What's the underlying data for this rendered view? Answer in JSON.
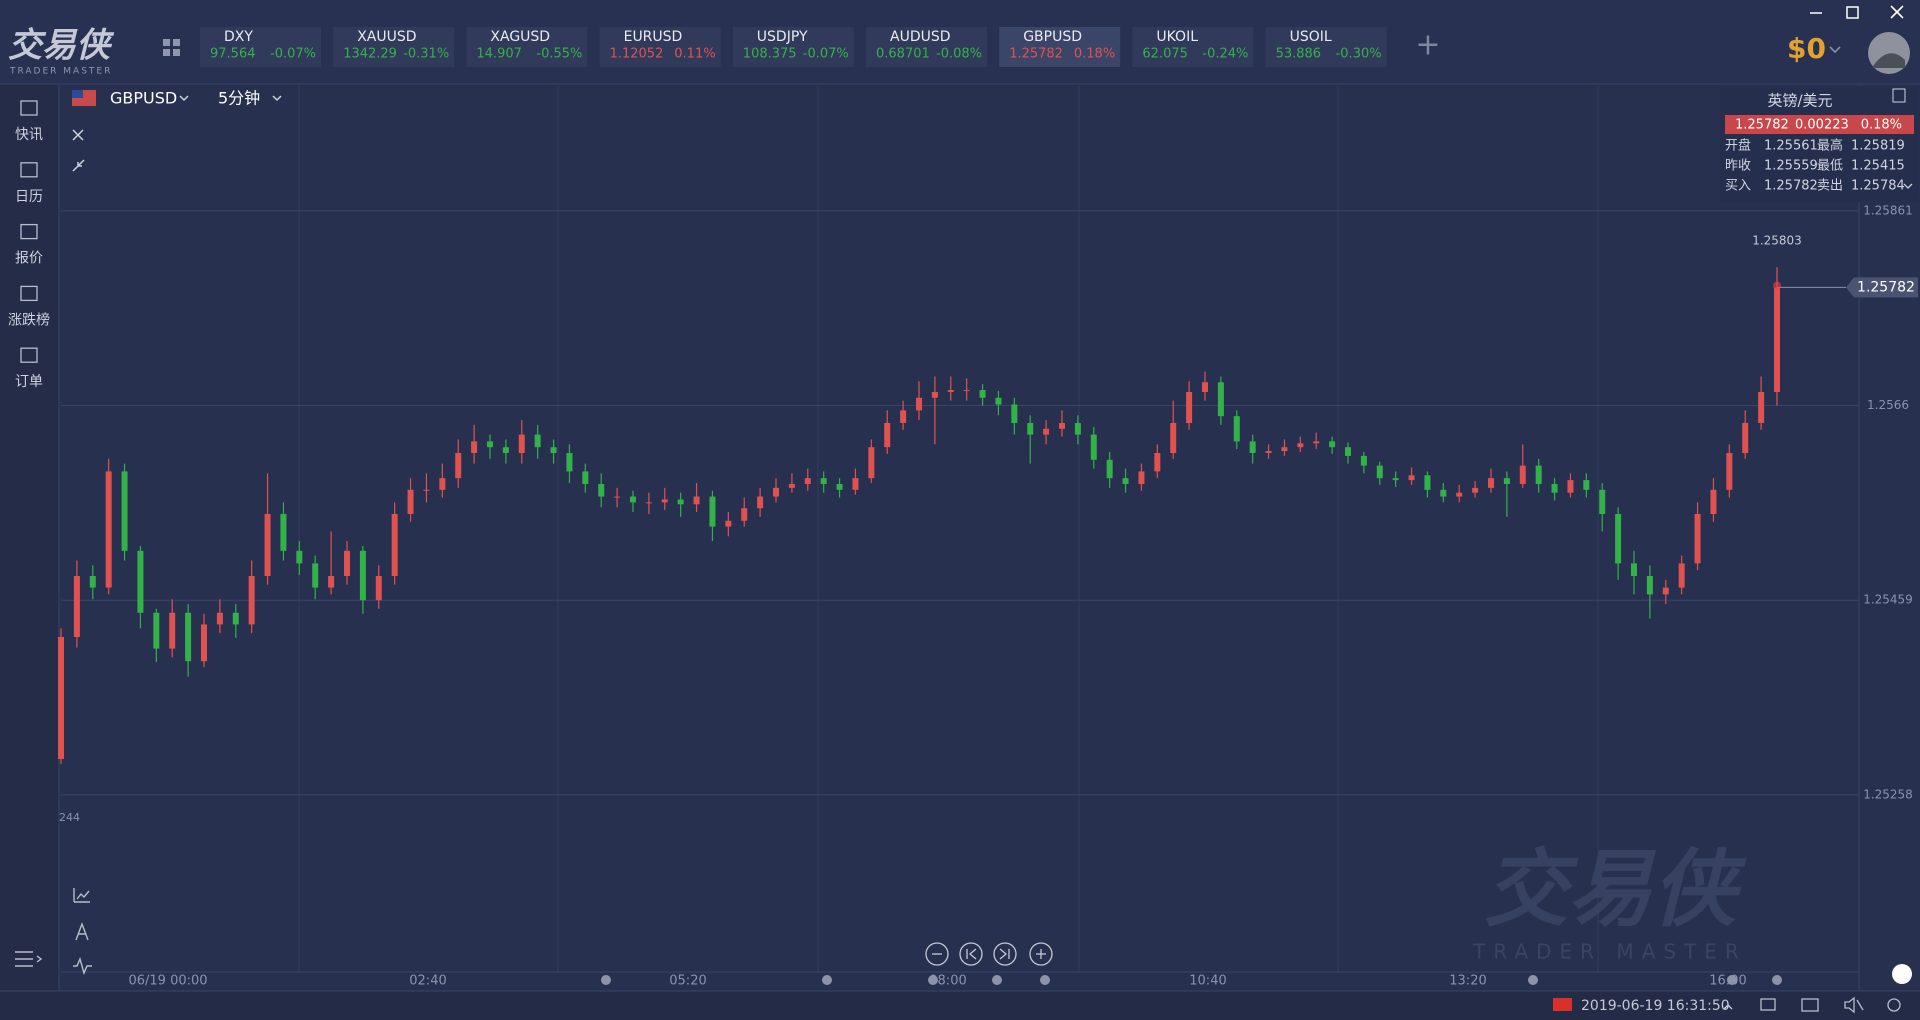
{
  "app": {
    "logo": "交易侠",
    "logo_sub": "TRADER MASTER",
    "balance": "$0"
  },
  "tickers": [
    {
      "name": "DXY",
      "price": "97.564",
      "change": "-0.07%"
    },
    {
      "name": "XAUUSD",
      "price": "1342.29",
      "change": "-0.31%"
    },
    {
      "name": "XAGUSD",
      "price": "14.907",
      "change": "-0.55%"
    },
    {
      "name": "EURUSD",
      "price": "1.12052",
      "change": "0.11%"
    },
    {
      "name": "USDJPY",
      "price": "108.375",
      "change": "-0.07%"
    },
    {
      "name": "AUDUSD",
      "price": "0.68701",
      "change": "-0.08%"
    },
    {
      "name": "GBPUSD",
      "price": "1.25782",
      "change": "0.18%"
    },
    {
      "name": "UKOIL",
      "price": "62.075",
      "change": "-0.24%"
    },
    {
      "name": "USOIL",
      "price": "53.886",
      "change": "-0.30%"
    }
  ],
  "sidebar": [
    "快讯",
    "日历",
    "报价",
    "涨跌榜",
    "订单"
  ],
  "chart_header": {
    "symbol": "GBPUSD",
    "interval": "5分钟"
  },
  "quote_panel": {
    "title": "英镑/美元",
    "price": "1.25782",
    "change": "0.00223",
    "change_pct": "0.18%",
    "rows": [
      [
        "开盘",
        "1.25561",
        "最高",
        "1.25819"
      ],
      [
        "昨收",
        "1.25559",
        "最低",
        "1.25415"
      ],
      [
        "买入",
        "1.25782",
        "卖出",
        "1.25784"
      ]
    ]
  },
  "chart": {
    "type": "candlestick",
    "up_color": "#e0524f",
    "down_color": "#33b24a",
    "ylim": [
      1.25074,
      1.2599
    ],
    "yticks": [
      1.25861,
      1.2566,
      1.25459,
      1.25258
    ],
    "grid": true,
    "xtick_labels": [
      "06/19 00:00",
      "02:40",
      "05:20",
      "08:00",
      "10:40",
      "13:20",
      "16:00"
    ],
    "last_price": 1.25782,
    "high_label": 1.25803,
    "cut_label": "244",
    "candles": [
      [
        1.25295,
        1.2543,
        1.2529,
        1.25421
      ],
      [
        1.25421,
        1.255,
        1.2541,
        1.25484
      ],
      [
        1.25484,
        1.25495,
        1.2546,
        1.25472
      ],
      [
        1.25472,
        1.25605,
        1.25465,
        1.25592
      ],
      [
        1.25592,
        1.256,
        1.255,
        1.2551
      ],
      [
        1.2551,
        1.25515,
        1.2543,
        1.25446
      ],
      [
        1.25446,
        1.2545,
        1.25395,
        1.25409
      ],
      [
        1.25409,
        1.2546,
        1.254,
        1.25446
      ],
      [
        1.25446,
        1.25455,
        1.2538,
        1.25396
      ],
      [
        1.25396,
        1.25445,
        1.2539,
        1.25434
      ],
      [
        1.25434,
        1.2546,
        1.25425,
        1.25446
      ],
      [
        1.25446,
        1.25455,
        1.2542,
        1.25434
      ],
      [
        1.25434,
        1.255,
        1.25425,
        1.25484
      ],
      [
        1.25484,
        1.2559,
        1.25475,
        1.25548
      ],
      [
        1.25548,
        1.2556,
        1.255,
        1.2551
      ],
      [
        1.2551,
        1.2552,
        1.25485,
        1.25497
      ],
      [
        1.25497,
        1.25505,
        1.2546,
        1.25472
      ],
      [
        1.25472,
        1.2553,
        1.25465,
        1.25484
      ],
      [
        1.25484,
        1.2552,
        1.25475,
        1.2551
      ],
      [
        1.2551,
        1.25515,
        1.25445,
        1.25459
      ],
      [
        1.25459,
        1.25495,
        1.2545,
        1.25484
      ],
      [
        1.25484,
        1.2556,
        1.25475,
        1.25548
      ],
      [
        1.25548,
        1.25585,
        1.2554,
        1.25573
      ],
      [
        1.25573,
        1.2559,
        1.2556,
        1.25573
      ],
      [
        1.25573,
        1.256,
        1.25565,
        1.25585
      ],
      [
        1.25585,
        1.25625,
        1.25575,
        1.25611
      ],
      [
        1.25611,
        1.2564,
        1.256,
        1.25623
      ],
      [
        1.25623,
        1.2563,
        1.25605,
        1.25617
      ],
      [
        1.25617,
        1.25625,
        1.256,
        1.25611
      ],
      [
        1.25611,
        1.25645,
        1.256,
        1.2563
      ],
      [
        1.2563,
        1.2564,
        1.25605,
        1.25617
      ],
      [
        1.25617,
        1.25625,
        1.256,
        1.25611
      ],
      [
        1.25611,
        1.2562,
        1.2558,
        1.25592
      ],
      [
        1.25592,
        1.256,
        1.2557,
        1.25579
      ],
      [
        1.25579,
        1.2559,
        1.25555,
        1.25566
      ],
      [
        1.25566,
        1.25575,
        1.25555,
        1.25566
      ],
      [
        1.25566,
        1.25572,
        1.2555,
        1.2556
      ],
      [
        1.2556,
        1.2557,
        1.25548,
        1.2556
      ],
      [
        1.2556,
        1.25575,
        1.25552,
        1.25563
      ],
      [
        1.25563,
        1.2557,
        1.25545,
        1.25558
      ],
      [
        1.25558,
        1.2558,
        1.2555,
        1.25566
      ],
      [
        1.25566,
        1.25572,
        1.2552,
        1.25535
      ],
      [
        1.25535,
        1.2555,
        1.25525,
        1.25541
      ],
      [
        1.25541,
        1.25565,
        1.25535,
        1.25554
      ],
      [
        1.25554,
        1.25575,
        1.25545,
        1.25566
      ],
      [
        1.25566,
        1.25585,
        1.2556,
        1.25575
      ],
      [
        1.25575,
        1.2559,
        1.2557,
        1.25579
      ],
      [
        1.25579,
        1.25595,
        1.25572,
        1.25585
      ],
      [
        1.25585,
        1.25592,
        1.2557,
        1.25579
      ],
      [
        1.25579,
        1.25585,
        1.25565,
        1.25573
      ],
      [
        1.25573,
        1.25595,
        1.25568,
        1.25585
      ],
      [
        1.25585,
        1.25625,
        1.2558,
        1.25617
      ],
      [
        1.25617,
        1.25655,
        1.2561,
        1.25642
      ],
      [
        1.25642,
        1.25665,
        1.25635,
        1.25655
      ],
      [
        1.25655,
        1.25685,
        1.25645,
        1.25668
      ],
      [
        1.25668,
        1.2569,
        1.2562,
        1.25674
      ],
      [
        1.25674,
        1.2569,
        1.25665,
        1.25676
      ],
      [
        1.25676,
        1.25688,
        1.25665,
        1.25676
      ],
      [
        1.25676,
        1.25682,
        1.2566,
        1.25668
      ],
      [
        1.25668,
        1.25675,
        1.2565,
        1.25661
      ],
      [
        1.25661,
        1.25668,
        1.2563,
        1.25642
      ],
      [
        1.25642,
        1.2565,
        1.256,
        1.2563
      ],
      [
        1.2563,
        1.25645,
        1.2562,
        1.25636
      ],
      [
        1.25636,
        1.25655,
        1.25628,
        1.25642
      ],
      [
        1.25642,
        1.2565,
        1.2562,
        1.2563
      ],
      [
        1.2563,
        1.25638,
        1.25595,
        1.25604
      ],
      [
        1.25604,
        1.25612,
        1.25575,
        1.25585
      ],
      [
        1.25585,
        1.25595,
        1.2557,
        1.25579
      ],
      [
        1.25579,
        1.256,
        1.25572,
        1.25592
      ],
      [
        1.25592,
        1.2562,
        1.25585,
        1.25611
      ],
      [
        1.25611,
        1.25665,
        1.25605,
        1.25642
      ],
      [
        1.25642,
        1.25685,
        1.25635,
        1.25674
      ],
      [
        1.25674,
        1.25695,
        1.25665,
        1.25684
      ],
      [
        1.25684,
        1.2569,
        1.2564,
        1.25649
      ],
      [
        1.25649,
        1.25655,
        1.25615,
        1.25623
      ],
      [
        1.25623,
        1.2563,
        1.256,
        1.25611
      ],
      [
        1.25611,
        1.2562,
        1.25605,
        1.25613
      ],
      [
        1.25613,
        1.25625,
        1.25608,
        1.25617
      ],
      [
        1.25617,
        1.25628,
        1.25612,
        1.25621
      ],
      [
        1.25621,
        1.25632,
        1.25615,
        1.25623
      ],
      [
        1.25623,
        1.25628,
        1.2561,
        1.25617
      ],
      [
        1.25617,
        1.25622,
        1.256,
        1.25608
      ],
      [
        1.25608,
        1.25612,
        1.2559,
        1.25598
      ],
      [
        1.25598,
        1.25602,
        1.25578,
        1.25585
      ],
      [
        1.25585,
        1.25592,
        1.25576,
        1.25583
      ],
      [
        1.25583,
        1.25596,
        1.25578,
        1.25588
      ],
      [
        1.25588,
        1.25592,
        1.25565,
        1.25573
      ],
      [
        1.25573,
        1.2558,
        1.2556,
        1.25566
      ],
      [
        1.25566,
        1.25578,
        1.2556,
        1.2557
      ],
      [
        1.2557,
        1.25582,
        1.25565,
        1.25575
      ],
      [
        1.25575,
        1.25595,
        1.2557,
        1.25585
      ],
      [
        1.25585,
        1.25592,
        1.25545,
        1.25579
      ],
      [
        1.25579,
        1.2562,
        1.25575,
        1.25598
      ],
      [
        1.25598,
        1.25605,
        1.2557,
        1.25579
      ],
      [
        1.25579,
        1.25585,
        1.25562,
        1.2557
      ],
      [
        1.2557,
        1.2559,
        1.25565,
        1.25583
      ],
      [
        1.25583,
        1.2559,
        1.25565,
        1.25573
      ],
      [
        1.25573,
        1.2558,
        1.2553,
        1.25548
      ],
      [
        1.25548,
        1.25555,
        1.2548,
        1.25497
      ],
      [
        1.25497,
        1.2551,
        1.25465,
        1.25484
      ],
      [
        1.25484,
        1.25495,
        1.2544,
        1.25465
      ],
      [
        1.25465,
        1.2548,
        1.25455,
        1.25472
      ],
      [
        1.25472,
        1.25505,
        1.25465,
        1.25497
      ],
      [
        1.25497,
        1.2556,
        1.2549,
        1.25548
      ],
      [
        1.25548,
        1.25585,
        1.2554,
        1.25573
      ],
      [
        1.25573,
        1.2562,
        1.25565,
        1.25611
      ],
      [
        1.25611,
        1.25655,
        1.25605,
        1.25642
      ],
      [
        1.25642,
        1.2569,
        1.25635,
        1.25674
      ],
      [
        1.25674,
        1.25803,
        1.2566,
        1.25782
      ]
    ]
  },
  "status": {
    "datetime": "2019-06-19 16:31:50"
  },
  "watermark": {
    "text": "交易侠",
    "sub": "TRADER MASTER"
  }
}
